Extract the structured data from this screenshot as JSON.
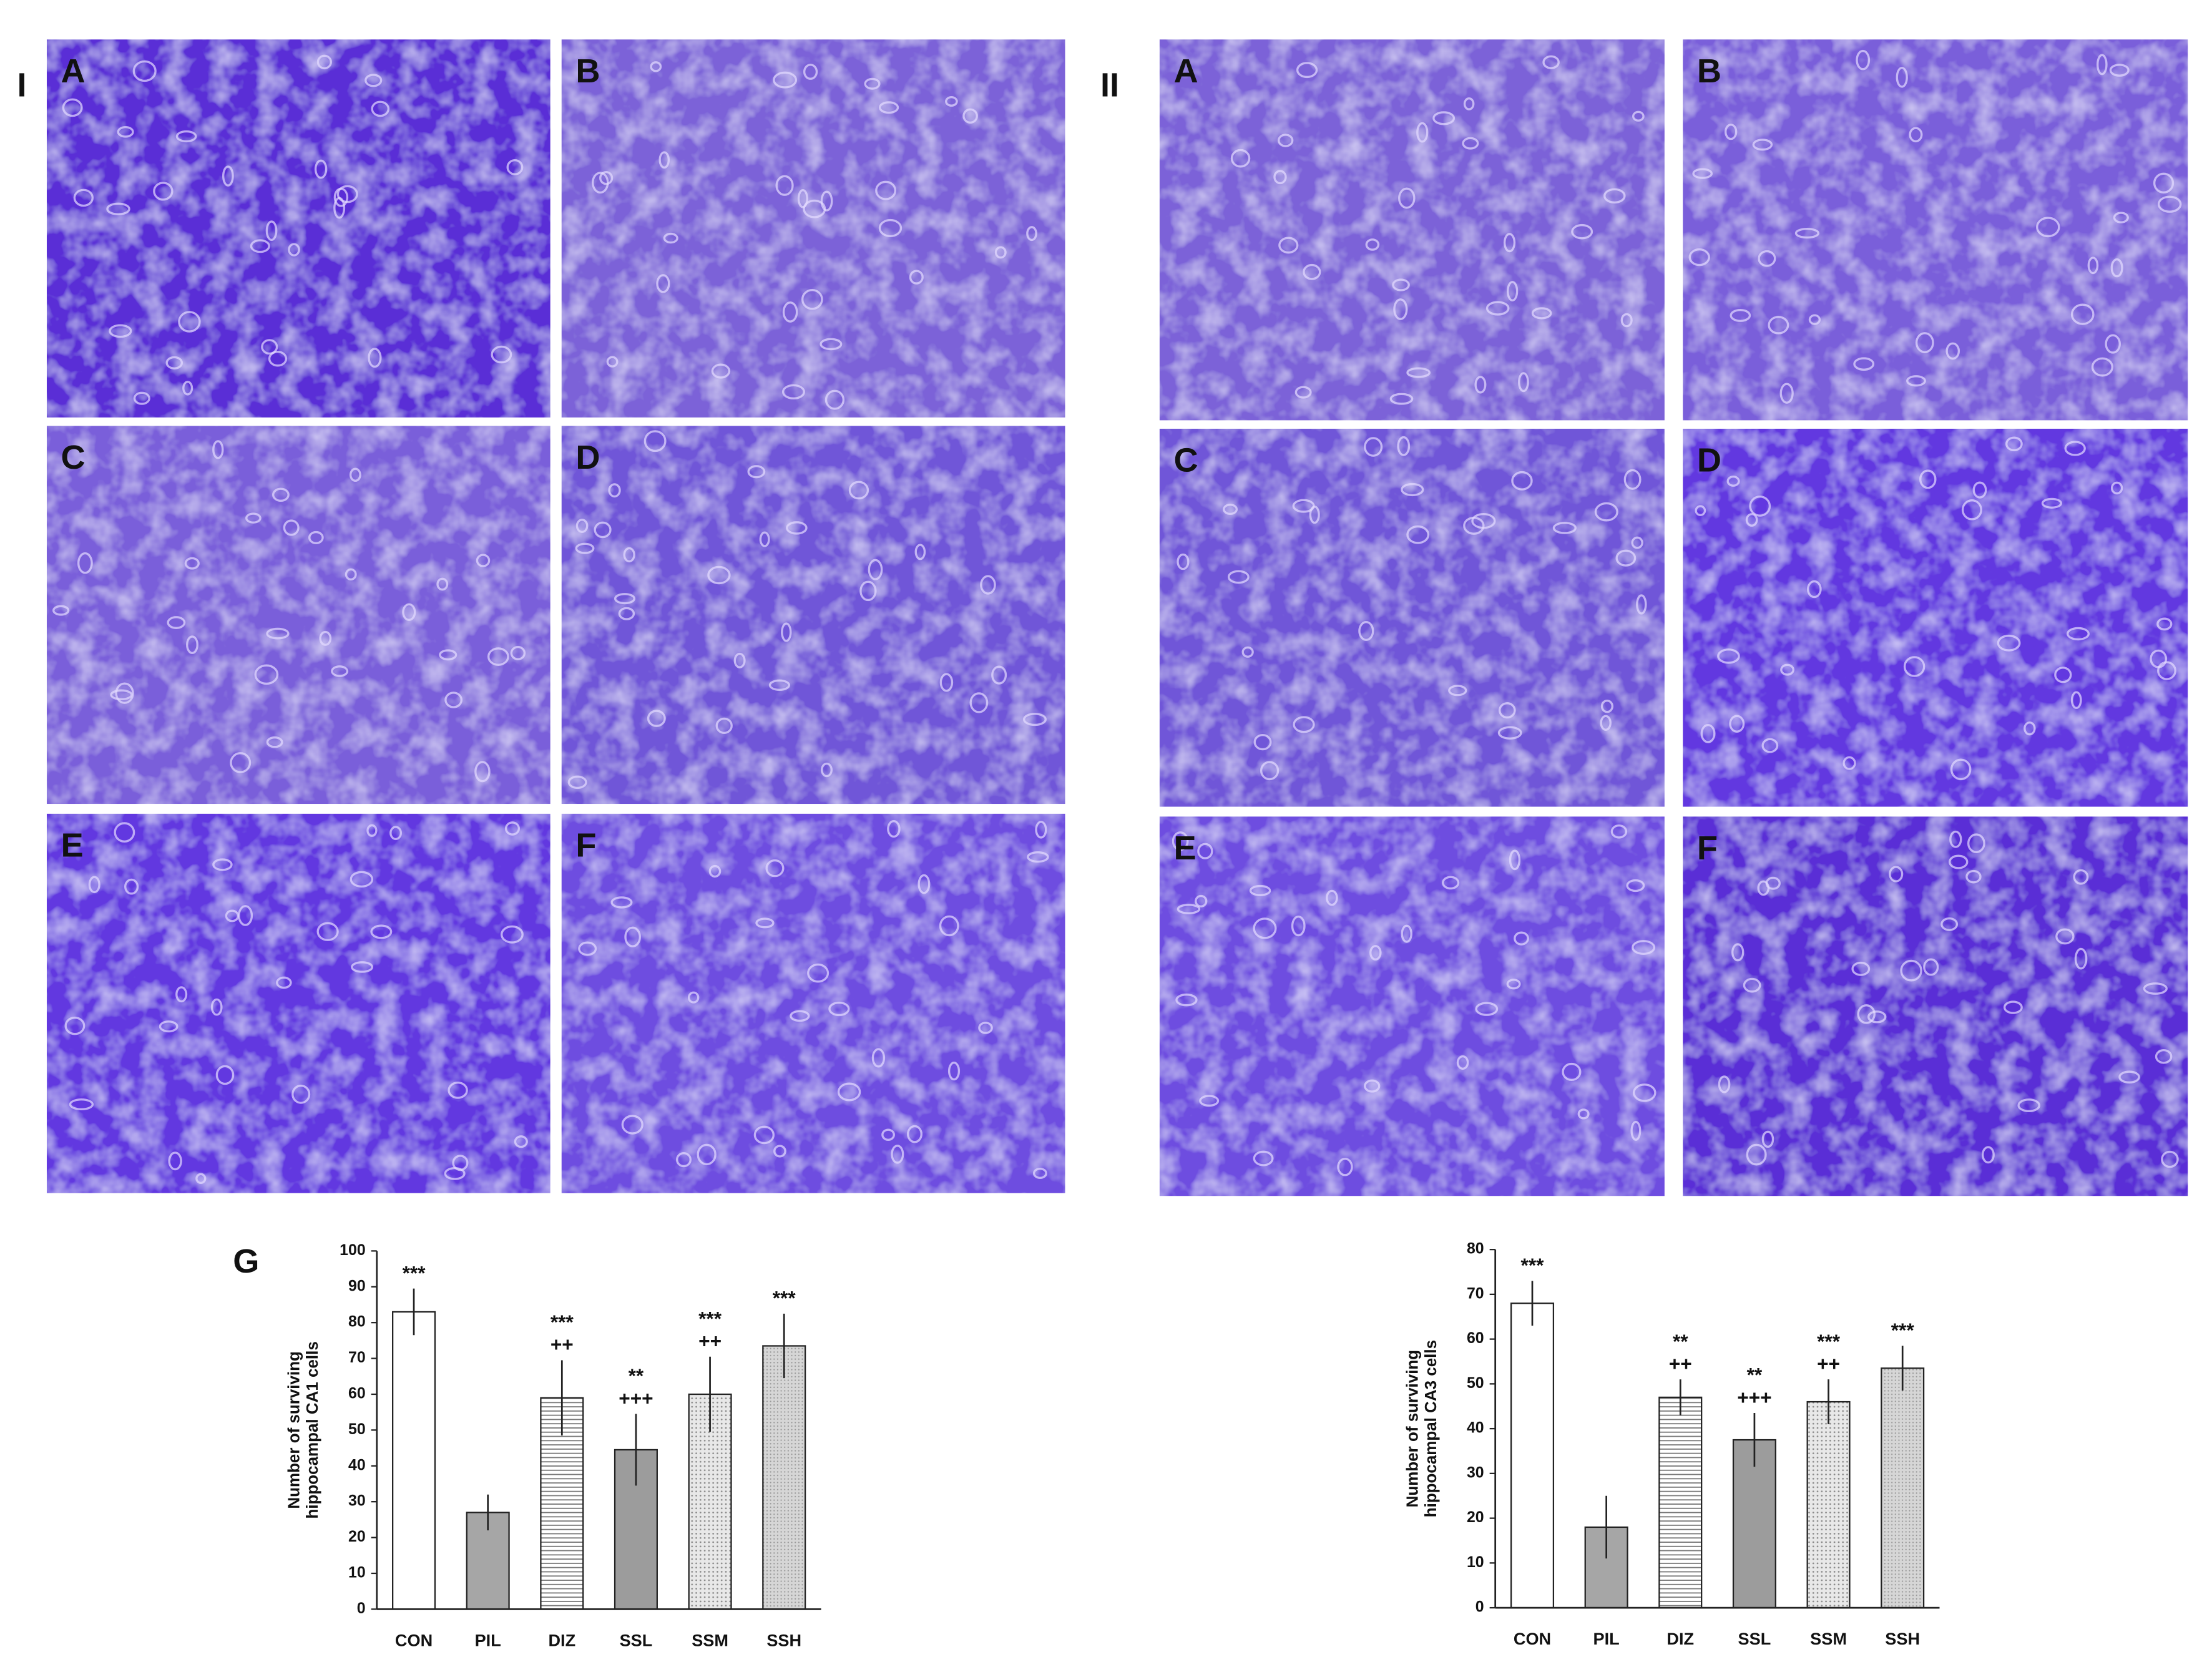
{
  "figure": {
    "groups": [
      {
        "label": "I",
        "tiles": [
          "A",
          "B",
          "C",
          "D",
          "E",
          "F"
        ]
      },
      {
        "label": "II",
        "tiles": [
          "A",
          "B",
          "C",
          "D",
          "E",
          "F"
        ]
      }
    ],
    "chart_label": "G"
  },
  "chart_data": [
    {
      "type": "bar",
      "ylabel": [
        "Number of surviving",
        "hippocampal CA1 cells"
      ],
      "categories": [
        "CON",
        "PIL",
        "DIZ",
        "SSL",
        "SSM",
        "SSH"
      ],
      "values": [
        83,
        27,
        59,
        44.5,
        60,
        73.5
      ],
      "errors": [
        6.5,
        5,
        10.5,
        10,
        10.5,
        9
      ],
      "annotations": [
        [
          "***"
        ],
        null,
        [
          "***",
          "++"
        ],
        [
          "**",
          "+++"
        ],
        [
          "***",
          "++"
        ],
        [
          "***"
        ]
      ],
      "fills": [
        "#ffffff",
        "#a6a6a6",
        "url(#hlines)",
        "#9c9c9c",
        "url(#dots)",
        "url(#dots2)"
      ],
      "ylim": [
        0,
        100
      ],
      "yticks": [
        0,
        10,
        20,
        30,
        40,
        50,
        60,
        70,
        80,
        90,
        100
      ]
    },
    {
      "type": "bar",
      "ylabel": [
        "Number of surviving",
        "hippocampal CA3 cells"
      ],
      "categories": [
        "CON",
        "PIL",
        "DIZ",
        "SSL",
        "SSM",
        "SSH"
      ],
      "values": [
        68,
        18,
        47,
        37.5,
        46,
        53.5
      ],
      "errors": [
        5,
        7,
        4,
        6,
        5,
        5
      ],
      "annotations": [
        [
          "***"
        ],
        null,
        [
          "**",
          "++"
        ],
        [
          "**",
          "+++"
        ],
        [
          "***",
          "++"
        ],
        [
          "***"
        ]
      ],
      "fills": [
        "#ffffff",
        "#a6a6a6",
        "url(#hlines)",
        "#9c9c9c",
        "url(#dots)",
        "url(#dots2)"
      ],
      "ylim": [
        0,
        80
      ],
      "yticks": [
        0,
        10,
        20,
        30,
        40,
        50,
        60,
        70,
        80
      ]
    }
  ]
}
